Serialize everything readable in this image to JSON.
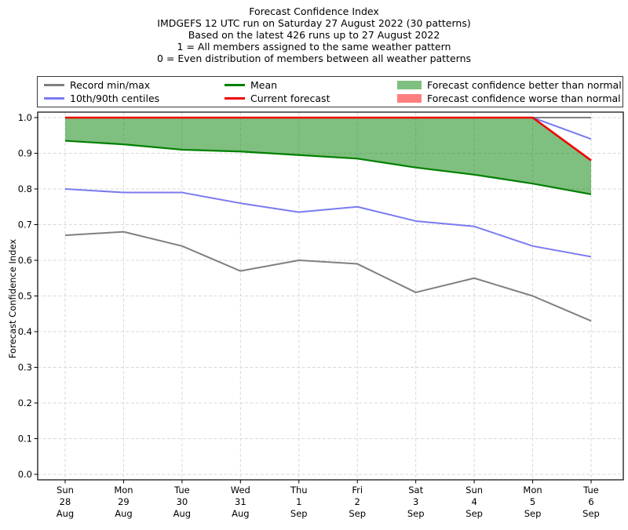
{
  "title": {
    "lines": [
      "Forecast Confidence Index",
      "IMDGEFS 12 UTC run on Saturday 27 August 2022 (30 patterns)",
      "Based on the latest 426 runs up to 27 August 2022",
      "1 = All members assigned to the same weather pattern",
      "0 = Even distribution of members between all weather patterns"
    ]
  },
  "legend": {
    "items": [
      {
        "label": "Record min/max",
        "swatch": "line",
        "color": "#808080"
      },
      {
        "label": "10th/90th centiles",
        "swatch": "line",
        "color": "#7a7af0"
      },
      {
        "label": "Mean",
        "swatch": "line",
        "color": "#008000"
      },
      {
        "label": "Current forecast",
        "swatch": "line",
        "color": "#ee0000"
      },
      {
        "label": "Forecast confidence better than normal",
        "swatch": "patch",
        "color": "#7fbf7f"
      },
      {
        "label": "Forecast confidence worse than normal",
        "swatch": "patch",
        "color": "#ff7f7f"
      }
    ]
  },
  "chart_data": {
    "type": "line",
    "title": "Forecast Confidence Index",
    "xlabel": "",
    "ylabel": "Forecast Confidence Index",
    "ylim": [
      0.0,
      1.0
    ],
    "yticks": [
      0.0,
      0.1,
      0.2,
      0.3,
      0.4,
      0.5,
      0.6,
      0.7,
      0.8,
      0.9,
      1.0
    ],
    "grid": true,
    "grid_style": "dashed",
    "legend_position": "top",
    "categories": [
      [
        "Sun",
        "28",
        "Aug"
      ],
      [
        "Mon",
        "29",
        "Aug"
      ],
      [
        "Tue",
        "30",
        "Aug"
      ],
      [
        "Wed",
        "31",
        "Aug"
      ],
      [
        "Thu",
        "1",
        "Sep"
      ],
      [
        "Fri",
        "2",
        "Sep"
      ],
      [
        "Sat",
        "3",
        "Sep"
      ],
      [
        "Sun",
        "4",
        "Sep"
      ],
      [
        "Mon",
        "5",
        "Sep"
      ],
      [
        "Tue",
        "6",
        "Sep"
      ]
    ],
    "series": [
      {
        "name": "Record max",
        "color": "#808080",
        "width": 2,
        "values": [
          1.0,
          1.0,
          1.0,
          1.0,
          1.0,
          1.0,
          1.0,
          1.0,
          1.0,
          1.0
        ]
      },
      {
        "name": "Record min",
        "color": "#808080",
        "width": 2,
        "values": [
          0.67,
          0.68,
          0.64,
          0.57,
          0.6,
          0.59,
          0.51,
          0.55,
          0.5,
          0.43
        ]
      },
      {
        "name": "90th centile",
        "color": "#7a7af0",
        "width": 2,
        "values": [
          1.0,
          1.0,
          1.0,
          1.0,
          1.0,
          1.0,
          1.0,
          1.0,
          1.0,
          0.94
        ]
      },
      {
        "name": "10th centile",
        "color": "#7a7af0",
        "width": 2,
        "values": [
          0.8,
          0.79,
          0.79,
          0.76,
          0.735,
          0.75,
          0.71,
          0.695,
          0.64,
          0.61
        ]
      },
      {
        "name": "Mean",
        "color": "#008000",
        "width": 2.2,
        "values": [
          0.935,
          0.925,
          0.91,
          0.905,
          0.895,
          0.885,
          0.86,
          0.84,
          0.815,
          0.785
        ]
      },
      {
        "name": "Current forecast",
        "color": "#ee0000",
        "width": 2.6,
        "values": [
          1.0,
          1.0,
          1.0,
          1.0,
          1.0,
          1.0,
          1.0,
          1.0,
          1.0,
          0.88
        ]
      }
    ],
    "fills": [
      {
        "name": "Forecast confidence better than normal",
        "upper": "Current forecast",
        "lower": "Mean",
        "color": "rgba(0,128,0,0.5)"
      },
      {
        "name": "Forecast confidence worse than normal",
        "upper": null,
        "lower": null,
        "color": "rgba(255,0,0,0.5)"
      }
    ]
  }
}
